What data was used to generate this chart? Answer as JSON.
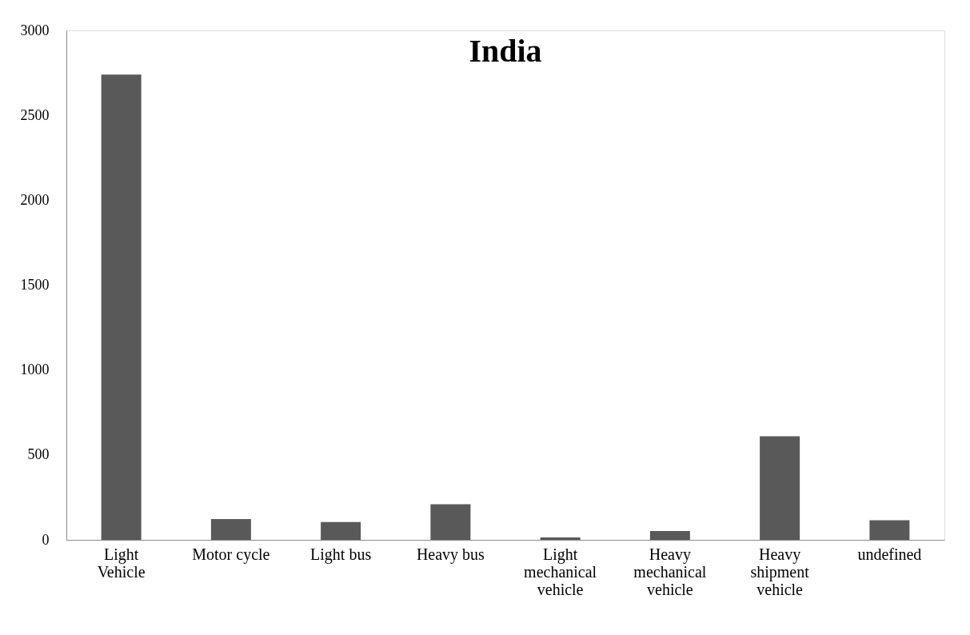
{
  "chart_data": {
    "type": "bar",
    "title": "India",
    "categories": [
      "Light Vehicle",
      "Motor cycle",
      "Light bus",
      "Heavy bus",
      "Light mechanical vehicle",
      "Heavy mechanical vehicle",
      "Heavy shipment vehicle",
      "undefined"
    ],
    "values": [
      2740,
      122,
      105,
      210,
      14,
      52,
      610,
      115
    ],
    "color": "#595959",
    "ylim": [
      0,
      3000
    ],
    "yticks": [
      0,
      500,
      1000,
      1500,
      2000,
      2500,
      3000
    ],
    "grid": false
  }
}
